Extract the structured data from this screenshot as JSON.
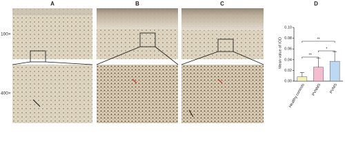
{
  "panels": {
    "a": "A",
    "b": "B",
    "c": "C",
    "d": "D",
    "mag_low": "100×",
    "mag_high": "400×"
  },
  "chart_data": {
    "type": "bar",
    "ylabel": "Mean value of IOD",
    "categories": [
      "Healthy controls",
      "PVNMS",
      "PVMS"
    ],
    "values": [
      0.008,
      0.026,
      0.037
    ],
    "errors": [
      0.008,
      0.017,
      0.018
    ],
    "colors": [
      "#f2f2b8",
      "#f5bcd0",
      "#bcd8f2"
    ],
    "ylim": [
      0,
      0.1
    ],
    "yticks": [
      {
        "value": 0,
        "label": "0.00"
      },
      {
        "value": 0.02,
        "label": "0.02"
      },
      {
        "value": 0.04,
        "label": "0.04"
      },
      {
        "value": 0.06,
        "label": "0.06"
      },
      {
        "value": 0.08,
        "label": "0.08"
      },
      {
        "value": 0.1,
        "label": "0.10"
      }
    ],
    "annotations": [
      "**",
      "**",
      "*"
    ]
  }
}
